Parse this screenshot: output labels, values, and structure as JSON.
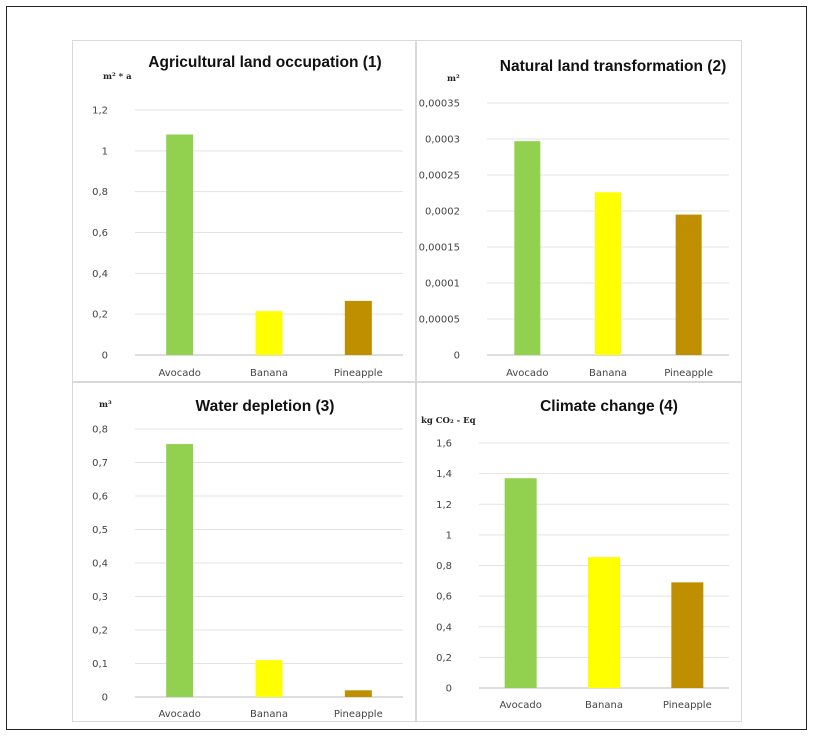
{
  "colors": {
    "avocado": "#92d050",
    "banana": "#ffff00",
    "pineapple": "#bf8f00"
  },
  "chart_data": [
    {
      "type": "bar",
      "title": "Agricultural land occupation (1)",
      "unit": "m² * a",
      "categories": [
        "Avocado",
        "Banana",
        "Pineapple"
      ],
      "values": [
        1.08,
        0.215,
        0.265
      ],
      "ylim": [
        0,
        1.2
      ],
      "yticks": [
        "0",
        "0,2",
        "0,4",
        "0,6",
        "0,8",
        "1",
        "1,2"
      ],
      "grid": true
    },
    {
      "type": "bar",
      "title": "Natural land transformation (2)",
      "unit": "m²",
      "categories": [
        "Avocado",
        "Banana",
        "Pineapple"
      ],
      "values": [
        0.000297,
        0.000226,
        0.000195
      ],
      "ylim": [
        0,
        0.00035
      ],
      "yticks": [
        "0",
        "0,00005",
        "0,0001",
        "0,00015",
        "0,0002",
        "0,00025",
        "0,0003",
        "0,00035"
      ],
      "grid": true
    },
    {
      "type": "bar",
      "title": "Water depletion (3)",
      "unit": "m³",
      "categories": [
        "Avocado",
        "Banana",
        "Pineapple"
      ],
      "values": [
        0.755,
        0.11,
        0.02
      ],
      "ylim": [
        0,
        0.8
      ],
      "yticks": [
        "0",
        "0,1",
        "0,2",
        "0,3",
        "0,4",
        "0,5",
        "0,6",
        "0,7",
        "0,8"
      ],
      "grid": true
    },
    {
      "type": "bar",
      "title": "Climate change (4)",
      "unit": "kg CO₂ - Eq",
      "categories": [
        "Avocado",
        "Banana",
        "Pineapple"
      ],
      "values": [
        1.37,
        0.855,
        0.69
      ],
      "ylim": [
        0,
        1.6
      ],
      "yticks": [
        "0",
        "0,2",
        "0,4",
        "0,6",
        "0,8",
        "1",
        "1,2",
        "1,4",
        "1,6"
      ],
      "grid": true
    }
  ]
}
